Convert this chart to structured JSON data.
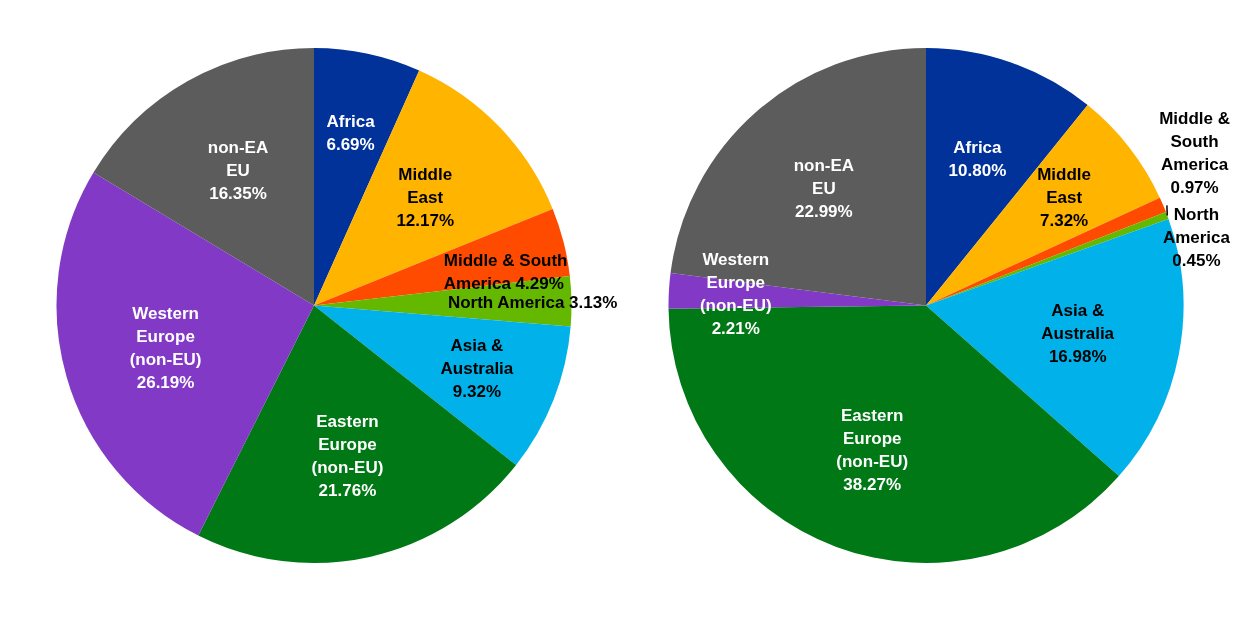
{
  "chart_data": [
    {
      "type": "pie",
      "categories": [
        "Africa",
        "Middle East",
        "Middle & South America",
        "North America",
        "Asia & Australia",
        "Eastern Europe (non-EU)",
        "Western Europe (non-EU)",
        "non-EA EU"
      ],
      "values": [
        6.69,
        12.17,
        4.29,
        3.13,
        9.32,
        21.76,
        26.19,
        16.35
      ],
      "colors": [
        "#003299",
        "#ffb400",
        "#ff4b00",
        "#65b800",
        "#00b1ea",
        "#007816",
        "#8139c6",
        "#5c5c5c"
      ],
      "value_labels": [
        "6.69%",
        "12.17%",
        "4.29%",
        "3.13%",
        "9.32%",
        "21.76%",
        "26.19%",
        "16.35%"
      ]
    },
    {
      "type": "pie",
      "categories": [
        "Africa",
        "Middle East",
        "Middle & South America",
        "North America",
        "Asia & Australia",
        "Eastern Europe (non-EU)",
        "Western Europe (non-EU)",
        "non-EA EU"
      ],
      "values": [
        10.8,
        7.32,
        0.97,
        0.45,
        16.98,
        38.27,
        2.21,
        22.99
      ],
      "colors": [
        "#003299",
        "#ffb400",
        "#ff4b00",
        "#65b800",
        "#00b1ea",
        "#007816",
        "#8139c6",
        "#5c5c5c"
      ],
      "value_labels": [
        "10.80%",
        "7.32%",
        "0.97%",
        "0.45%",
        "16.98%",
        "38.27%",
        "2.21%",
        "22.99%"
      ]
    }
  ]
}
